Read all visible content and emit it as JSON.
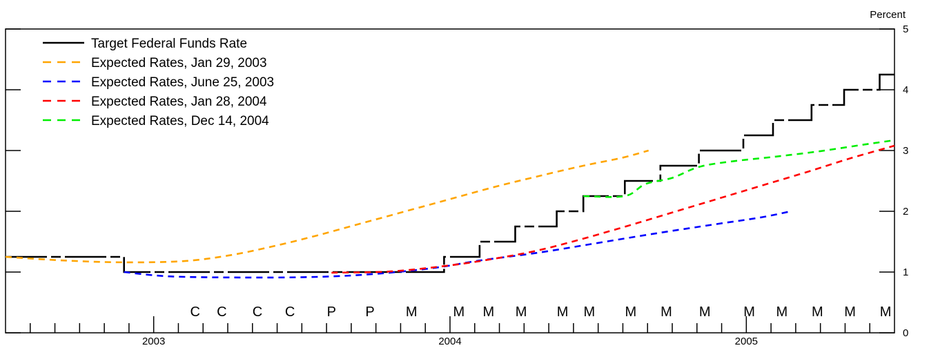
{
  "chart_data": {
    "type": "line",
    "title": "",
    "xlabel": "",
    "ylabel": "",
    "y_unit_label": "Percent",
    "ylim": [
      0,
      5
    ],
    "xlim": [
      2002.5,
      2005.5
    ],
    "y_ticks": [
      "0",
      "1",
      "2",
      "3",
      "4",
      "5"
    ],
    "x_year_labels": [
      {
        "label": "2003",
        "x": 2003.0
      },
      {
        "label": "2004",
        "x": 2004.0
      },
      {
        "label": "2005",
        "x": 2005.0
      }
    ],
    "grid": false,
    "legend_position": "top-left",
    "series": [
      {
        "name": "Target Federal Funds Rate",
        "color": "#000000",
        "style": "solid-with-breaks",
        "step_points": [
          [
            2002.5,
            1.25
          ],
          [
            2002.9,
            1.25
          ],
          [
            2002.9,
            1.0
          ],
          [
            2003.98,
            1.0
          ],
          [
            2003.98,
            1.25
          ],
          [
            2004.1,
            1.25
          ],
          [
            2004.1,
            1.5
          ],
          [
            2004.22,
            1.5
          ],
          [
            2004.22,
            1.75
          ],
          [
            2004.36,
            1.75
          ],
          [
            2004.36,
            2.0
          ],
          [
            2004.45,
            2.0
          ],
          [
            2004.45,
            2.25
          ],
          [
            2004.59,
            2.25
          ],
          [
            2004.59,
            2.5
          ],
          [
            2004.71,
            2.5
          ],
          [
            2004.71,
            2.75
          ],
          [
            2004.84,
            2.75
          ],
          [
            2004.84,
            3.0
          ],
          [
            2004.99,
            3.0
          ],
          [
            2004.99,
            3.25
          ],
          [
            2005.09,
            3.25
          ],
          [
            2005.09,
            3.5
          ],
          [
            2005.22,
            3.5
          ],
          [
            2005.22,
            3.75
          ],
          [
            2005.33,
            3.75
          ],
          [
            2005.33,
            4.0
          ],
          [
            2005.45,
            4.0
          ],
          [
            2005.45,
            4.25
          ],
          [
            2005.5,
            4.25
          ]
        ]
      },
      {
        "name": "Expected Rates, Jan 29, 2003",
        "color": "#FFA500",
        "style": "dashed",
        "points": [
          [
            2002.5,
            1.25
          ],
          [
            2002.7,
            1.19
          ],
          [
            2002.9,
            1.16
          ],
          [
            2003.1,
            1.18
          ],
          [
            2003.25,
            1.27
          ],
          [
            2003.4,
            1.42
          ],
          [
            2003.55,
            1.6
          ],
          [
            2003.7,
            1.8
          ],
          [
            2003.85,
            2.0
          ],
          [
            2004.0,
            2.2
          ],
          [
            2004.15,
            2.4
          ],
          [
            2004.3,
            2.58
          ],
          [
            2004.45,
            2.75
          ],
          [
            2004.58,
            2.88
          ],
          [
            2004.67,
            3.0
          ]
        ]
      },
      {
        "name": "Expected Rates, June 25, 2003",
        "color": "#0000FF",
        "style": "dashed",
        "points": [
          [
            2002.9,
            1.0
          ],
          [
            2003.05,
            0.93
          ],
          [
            2003.3,
            0.91
          ],
          [
            2003.55,
            0.92
          ],
          [
            2003.75,
            0.97
          ],
          [
            2003.95,
            1.07
          ],
          [
            2004.1,
            1.19
          ],
          [
            2004.3,
            1.32
          ],
          [
            2004.5,
            1.48
          ],
          [
            2004.7,
            1.64
          ],
          [
            2004.9,
            1.79
          ],
          [
            2005.05,
            1.9
          ],
          [
            2005.15,
            2.0
          ]
        ]
      },
      {
        "name": "Expected Rates, Jan 28, 2004",
        "color": "#FF0000",
        "style": "dashed",
        "points": [
          [
            2003.6,
            0.99
          ],
          [
            2003.8,
            1.01
          ],
          [
            2004.0,
            1.11
          ],
          [
            2004.15,
            1.22
          ],
          [
            2004.3,
            1.36
          ],
          [
            2004.45,
            1.55
          ],
          [
            2004.6,
            1.76
          ],
          [
            2004.75,
            1.98
          ],
          [
            2004.9,
            2.2
          ],
          [
            2005.05,
            2.42
          ],
          [
            2005.2,
            2.64
          ],
          [
            2005.35,
            2.87
          ],
          [
            2005.5,
            3.08
          ]
        ]
      },
      {
        "name": "Expected Rates, Dec 14, 2004",
        "color": "#00EE00",
        "style": "dashed",
        "points": [
          [
            2004.45,
            2.25
          ],
          [
            2004.59,
            2.25
          ],
          [
            2004.66,
            2.45
          ],
          [
            2004.75,
            2.55
          ],
          [
            2004.84,
            2.73
          ],
          [
            2004.95,
            2.82
          ],
          [
            2005.1,
            2.9
          ],
          [
            2005.25,
            2.99
          ],
          [
            2005.4,
            3.1
          ],
          [
            2005.5,
            3.17
          ]
        ]
      }
    ],
    "markers": [
      {
        "label": "C",
        "x": 2003.14
      },
      {
        "label": "C",
        "x": 2003.23
      },
      {
        "label": "C",
        "x": 2003.35
      },
      {
        "label": "C",
        "x": 2003.46
      },
      {
        "label": "P",
        "x": 2003.6
      },
      {
        "label": "P",
        "x": 2003.73
      },
      {
        "label": "M",
        "x": 2003.87
      },
      {
        "label": "M",
        "x": 2004.03
      },
      {
        "label": "M",
        "x": 2004.13
      },
      {
        "label": "M",
        "x": 2004.24
      },
      {
        "label": "M",
        "x": 2004.38
      },
      {
        "label": "M",
        "x": 2004.47
      },
      {
        "label": "M",
        "x": 2004.61
      },
      {
        "label": "M",
        "x": 2004.73
      },
      {
        "label": "M",
        "x": 2004.86
      },
      {
        "label": "M",
        "x": 2005.01
      },
      {
        "label": "M",
        "x": 2005.12
      },
      {
        "label": "M",
        "x": 2005.24
      },
      {
        "label": "M",
        "x": 2005.35
      },
      {
        "label": "M",
        "x": 2005.47
      }
    ]
  }
}
